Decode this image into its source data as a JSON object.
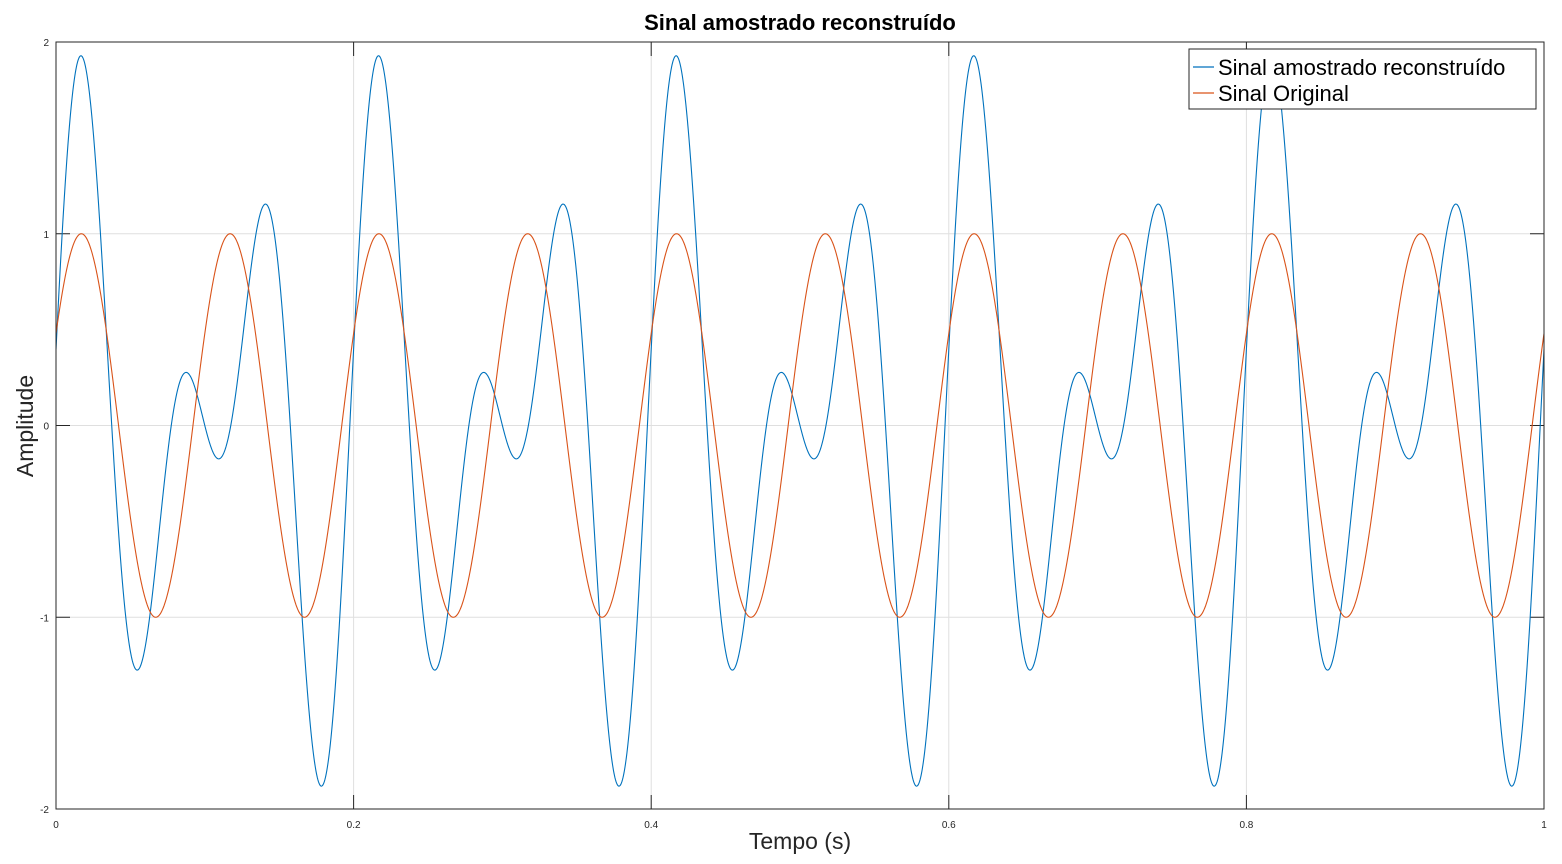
{
  "chart_data": {
    "type": "line",
    "title": "Sinal amostrado reconstruído",
    "xlabel": "Tempo (s)",
    "ylabel": "Amplitude",
    "xlim": [
      0,
      1
    ],
    "ylim": [
      -2,
      2
    ],
    "xticks": [
      0,
      0.2,
      0.4,
      0.6,
      0.8,
      1
    ],
    "xtick_labels": [
      "0",
      "0.2",
      "0.4",
      "0.6",
      "0.8",
      "1"
    ],
    "yticks": [
      -2,
      -1,
      0,
      1,
      2
    ],
    "ytick_labels": [
      "-2",
      "-1",
      "0",
      "1",
      "2"
    ],
    "grid": true,
    "legend_position": "top-right",
    "series": [
      {
        "name": "Sinal amostrado reconstruído",
        "color": "#0072BD",
        "formula": "sin(2*pi*10*t + 0.2) + sin(2*pi*15*t + 0.2)",
        "components": [
          {
            "amplitude": 1,
            "frequency_hz": 10,
            "phase_rad": 0.2
          },
          {
            "amplitude": 1,
            "frequency_hz": 15,
            "phase_rad": 0.2
          }
        ]
      },
      {
        "name": "Sinal Original",
        "color": "#D95319",
        "formula": "sin(2*pi*10*t + 0.5)",
        "components": [
          {
            "amplitude": 1,
            "frequency_hz": 10,
            "phase_rad": 0.5
          }
        ]
      }
    ]
  }
}
